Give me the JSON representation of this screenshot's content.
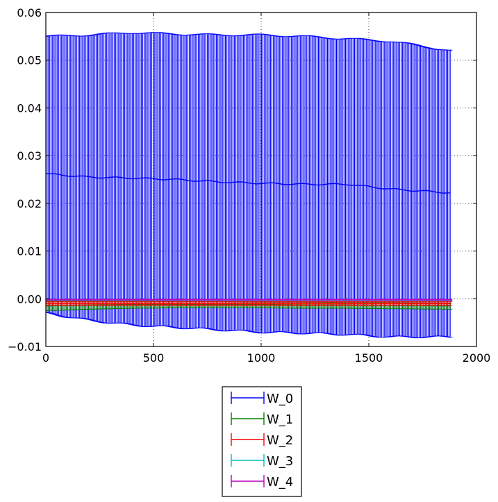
{
  "chart_data": {
    "type": "line",
    "title": "",
    "xlabel": "",
    "ylabel": "",
    "xlim": [
      0,
      2000
    ],
    "ylim": [
      -0.01,
      0.06
    ],
    "x_ticks": [
      0,
      500,
      1000,
      1500,
      2000
    ],
    "y_ticks": [
      -0.01,
      0.0,
      0.01,
      0.02,
      0.03,
      0.04,
      0.05,
      0.06
    ],
    "x_tick_labels": [
      "0",
      "500",
      "1000",
      "1500",
      "2000"
    ],
    "y_tick_labels": [
      "−0.01",
      "0.00",
      "0.01",
      "0.02",
      "0.03",
      "0.04",
      "0.05",
      "0.06"
    ],
    "grid": true,
    "legend_position": "below",
    "x": [
      0,
      200,
      400,
      600,
      800,
      1000,
      1200,
      1400,
      1600,
      1880
    ],
    "series": [
      {
        "name": "W_0",
        "color": "#0000ff",
        "values": [
          0.0262,
          0.0255,
          0.0253,
          0.025,
          0.0245,
          0.0242,
          0.024,
          0.024,
          0.023,
          0.0222
        ],
        "err_upper": [
          0.055,
          0.0553,
          0.0558,
          0.0555,
          0.0553,
          0.0553,
          0.055,
          0.0545,
          0.054,
          0.052
        ],
        "err_lower": [
          -0.003,
          -0.0045,
          -0.0055,
          -0.006,
          -0.0065,
          -0.007,
          -0.0072,
          -0.0075,
          -0.008,
          -0.008
        ]
      },
      {
        "name": "W_1",
        "color": "#008000",
        "values": [
          -0.0015,
          -0.0013,
          -0.0012,
          -0.0012,
          -0.0012,
          -0.0012,
          -0.0013,
          -0.0013,
          -0.0014,
          -0.0015
        ],
        "err_upper": [
          -0.0005,
          -0.0005,
          -0.0005,
          -0.0006,
          -0.0006,
          -0.0007,
          -0.0007,
          -0.0008,
          -0.0008,
          -0.0009
        ],
        "err_lower": [
          -0.0025,
          -0.0022,
          -0.002,
          -0.0019,
          -0.0019,
          -0.0019,
          -0.002,
          -0.002,
          -0.0021,
          -0.0022
        ]
      },
      {
        "name": "W_2",
        "color": "#ff0000",
        "values": [
          -0.001,
          -0.001,
          -0.001,
          -0.001,
          -0.001,
          -0.001,
          -0.001,
          -0.001,
          -0.001,
          -0.001
        ],
        "err_upper": [
          -0.0006,
          -0.0006,
          -0.0006,
          -0.0006,
          -0.0006,
          -0.0006,
          -0.0006,
          -0.0006,
          -0.0006,
          -0.0006
        ],
        "err_lower": [
          -0.0014,
          -0.0014,
          -0.0014,
          -0.0014,
          -0.0014,
          -0.0014,
          -0.0014,
          -0.0014,
          -0.0014,
          -0.0014
        ]
      },
      {
        "name": "W_3",
        "color": "#00bfbf",
        "values": [
          -0.0003,
          -0.0003,
          -0.0003,
          -0.0003,
          -0.0003,
          -0.0003,
          -0.0003,
          -0.0003,
          -0.0003,
          -0.0003
        ],
        "err_upper": [
          -0.0002,
          -0.0002,
          -0.0002,
          -0.0002,
          -0.0002,
          -0.0002,
          -0.0002,
          -0.0002,
          -0.0002,
          -0.0002
        ],
        "err_lower": [
          -0.0004,
          -0.0004,
          -0.0004,
          -0.0004,
          -0.0004,
          -0.0004,
          -0.0004,
          -0.0004,
          -0.0004,
          -0.0004
        ]
      },
      {
        "name": "W_4",
        "color": "#bf00bf",
        "values": [
          -0.0002,
          -0.0002,
          -0.0002,
          -0.0002,
          -0.0002,
          -0.0002,
          -0.0002,
          -0.0002,
          -0.0002,
          -0.0002
        ],
        "err_upper": [
          -0.0001,
          -0.0001,
          -0.0001,
          -0.0001,
          -0.0001,
          -0.0001,
          -0.0001,
          -0.0001,
          -0.0001,
          -0.0001
        ],
        "err_lower": [
          -0.0003,
          -0.0003,
          -0.0003,
          -0.0003,
          -0.0003,
          -0.0003,
          -0.0003,
          -0.0003,
          -0.0003,
          -0.0003
        ]
      }
    ]
  }
}
